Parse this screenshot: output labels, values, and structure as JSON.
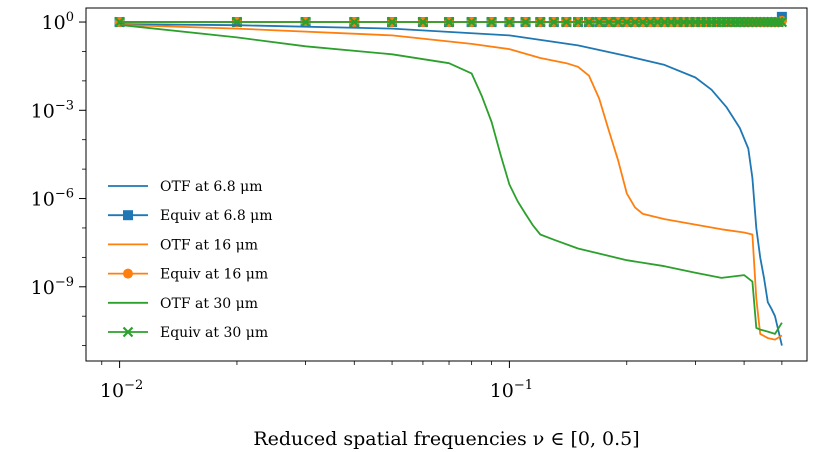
{
  "chart_data": {
    "type": "line",
    "title": "",
    "xlabel": "Reduced spatial frequencies ν ∈ [0, 0.5]",
    "ylabel": "",
    "xscale": "log",
    "yscale": "log",
    "xlim": [
      0.0082,
      0.58
    ],
    "ylim": [
      3e-12,
      3
    ],
    "grid": false,
    "legend_position": "lower-left",
    "x_ticks": [
      {
        "value": 0.01,
        "base": "10",
        "exp": "−2"
      },
      {
        "value": 0.1,
        "base": "10",
        "exp": "−1"
      }
    ],
    "y_ticks": [
      {
        "value": 1,
        "base": "10",
        "exp": "0"
      },
      {
        "value": 0.001,
        "base": "10",
        "exp": "−3"
      },
      {
        "value": 1e-06,
        "base": "10",
        "exp": "−6"
      },
      {
        "value": 1e-09,
        "base": "10",
        "exp": "−9"
      }
    ],
    "series": [
      {
        "name": "OTF at 6.8 μm",
        "kind": "line",
        "color": "#1f77b4",
        "x": [
          0.01,
          0.02,
          0.05,
          0.1,
          0.15,
          0.2,
          0.25,
          0.3,
          0.33,
          0.36,
          0.39,
          0.41,
          0.42,
          0.43,
          0.44,
          0.45,
          0.46,
          0.47,
          0.48,
          0.5
        ],
        "y": [
          0.85,
          0.78,
          0.6,
          0.35,
          0.16,
          0.07,
          0.035,
          0.013,
          0.005,
          0.0013,
          0.00025,
          5e-05,
          5e-06,
          1e-07,
          1e-08,
          2e-09,
          3e-10,
          1.8e-10,
          1e-10,
          1e-11
        ]
      },
      {
        "name": "Equiv at 6.8 μm",
        "kind": "marker",
        "marker": "square",
        "color": "#1f77b4",
        "x": [
          0.01,
          0.02,
          0.03,
          0.04,
          0.05,
          0.06,
          0.07,
          0.08,
          0.09,
          0.1,
          0.11,
          0.12,
          0.13,
          0.14,
          0.15,
          0.16,
          0.17,
          0.18,
          0.19,
          0.2,
          0.21,
          0.22,
          0.23,
          0.24,
          0.25,
          0.26,
          0.27,
          0.28,
          0.29,
          0.3,
          0.31,
          0.32,
          0.33,
          0.34,
          0.35,
          0.36,
          0.37,
          0.38,
          0.39,
          0.4,
          0.41,
          0.42,
          0.43,
          0.44,
          0.45,
          0.46,
          0.47,
          0.48,
          0.49,
          0.5
        ],
        "y": [
          1,
          1,
          1,
          1,
          1,
          1,
          1,
          1,
          1,
          1,
          1,
          1,
          1,
          1,
          1,
          1,
          1,
          1,
          1,
          1,
          1,
          1,
          1,
          1,
          1,
          1,
          1,
          1,
          1,
          1,
          1,
          1,
          1,
          1,
          1,
          1,
          1,
          1,
          1,
          1,
          1,
          1,
          1,
          1,
          1,
          1,
          1,
          1,
          1,
          1.5
        ]
      },
      {
        "name": "OTF at 16 μm",
        "kind": "line",
        "color": "#ff7f0e",
        "x": [
          0.01,
          0.02,
          0.05,
          0.08,
          0.1,
          0.12,
          0.14,
          0.15,
          0.16,
          0.17,
          0.18,
          0.19,
          0.2,
          0.21,
          0.22,
          0.25,
          0.3,
          0.35,
          0.4,
          0.42,
          0.43,
          0.44,
          0.46,
          0.48,
          0.5
        ],
        "y": [
          0.8,
          0.6,
          0.35,
          0.18,
          0.12,
          0.06,
          0.04,
          0.03,
          0.015,
          0.0025,
          0.0002,
          2e-05,
          1.5e-06,
          5e-07,
          3e-07,
          2e-07,
          1.3e-07,
          9e-08,
          7e-08,
          6e-08,
          4e-10,
          2.5e-11,
          1.8e-11,
          1.6e-11,
          2.2e-11
        ]
      },
      {
        "name": "Equiv at 16 μm",
        "kind": "marker",
        "marker": "circle",
        "color": "#ff7f0e",
        "x": [
          0.01,
          0.02,
          0.03,
          0.04,
          0.05,
          0.06,
          0.07,
          0.08,
          0.09,
          0.1,
          0.11,
          0.12,
          0.13,
          0.14,
          0.15,
          0.16,
          0.17,
          0.18,
          0.19,
          0.2,
          0.21,
          0.22,
          0.23,
          0.24,
          0.25,
          0.26,
          0.27,
          0.28,
          0.29,
          0.3,
          0.31,
          0.32,
          0.33,
          0.34,
          0.35,
          0.36,
          0.37,
          0.38,
          0.39,
          0.4,
          0.41,
          0.42,
          0.43,
          0.44,
          0.45,
          0.46,
          0.47,
          0.48,
          0.49,
          0.5
        ],
        "y": [
          1,
          1,
          1,
          1,
          1,
          1,
          1,
          1,
          1,
          1,
          1,
          1,
          1,
          1,
          1,
          1,
          1,
          1,
          1,
          1,
          1,
          1,
          1,
          1,
          1,
          1,
          1,
          1,
          1,
          1,
          1,
          1,
          1,
          1,
          1,
          1,
          1,
          1,
          1,
          1,
          1,
          1,
          1,
          1,
          1,
          1,
          1,
          1,
          1,
          1.1
        ]
      },
      {
        "name": "OTF at 30 μm",
        "kind": "line",
        "color": "#2ca02c",
        "x": [
          0.01,
          0.02,
          0.03,
          0.05,
          0.07,
          0.08,
          0.085,
          0.09,
          0.095,
          0.1,
          0.105,
          0.11,
          0.115,
          0.12,
          0.13,
          0.15,
          0.2,
          0.25,
          0.3,
          0.35,
          0.4,
          0.42,
          0.43,
          0.44,
          0.46,
          0.48,
          0.5
        ],
        "y": [
          0.8,
          0.3,
          0.15,
          0.08,
          0.04,
          0.018,
          0.003,
          0.0004,
          3e-05,
          3e-06,
          8e-07,
          3e-07,
          1.2e-07,
          6e-08,
          4e-08,
          2e-08,
          8e-09,
          5e-09,
          3e-09,
          2e-09,
          2.5e-09,
          1.5e-09,
          4e-11,
          3.5e-11,
          3e-11,
          2.5e-11,
          6e-11
        ]
      },
      {
        "name": "Equiv at 30 μm",
        "kind": "marker",
        "marker": "x",
        "color": "#2ca02c",
        "x": [
          0.01,
          0.02,
          0.03,
          0.04,
          0.05,
          0.06,
          0.07,
          0.08,
          0.09,
          0.1,
          0.11,
          0.12,
          0.13,
          0.14,
          0.15,
          0.16,
          0.17,
          0.18,
          0.19,
          0.2,
          0.21,
          0.22,
          0.23,
          0.24,
          0.25,
          0.26,
          0.27,
          0.28,
          0.29,
          0.3,
          0.31,
          0.32,
          0.33,
          0.34,
          0.35,
          0.36,
          0.37,
          0.38,
          0.39,
          0.4,
          0.41,
          0.42,
          0.43,
          0.44,
          0.45,
          0.46,
          0.47,
          0.48,
          0.49,
          0.5
        ],
        "y": [
          1,
          1,
          1,
          1,
          1,
          1,
          1,
          1,
          1,
          1,
          1,
          1,
          1,
          1,
          1,
          1,
          1,
          1,
          1,
          1,
          1,
          1,
          1,
          1,
          1,
          1,
          1,
          1,
          1,
          1,
          1,
          1,
          1,
          1,
          1,
          1,
          1,
          1,
          1,
          1,
          1,
          1,
          1,
          1,
          1,
          1,
          1,
          1,
          1,
          1
        ]
      }
    ]
  }
}
